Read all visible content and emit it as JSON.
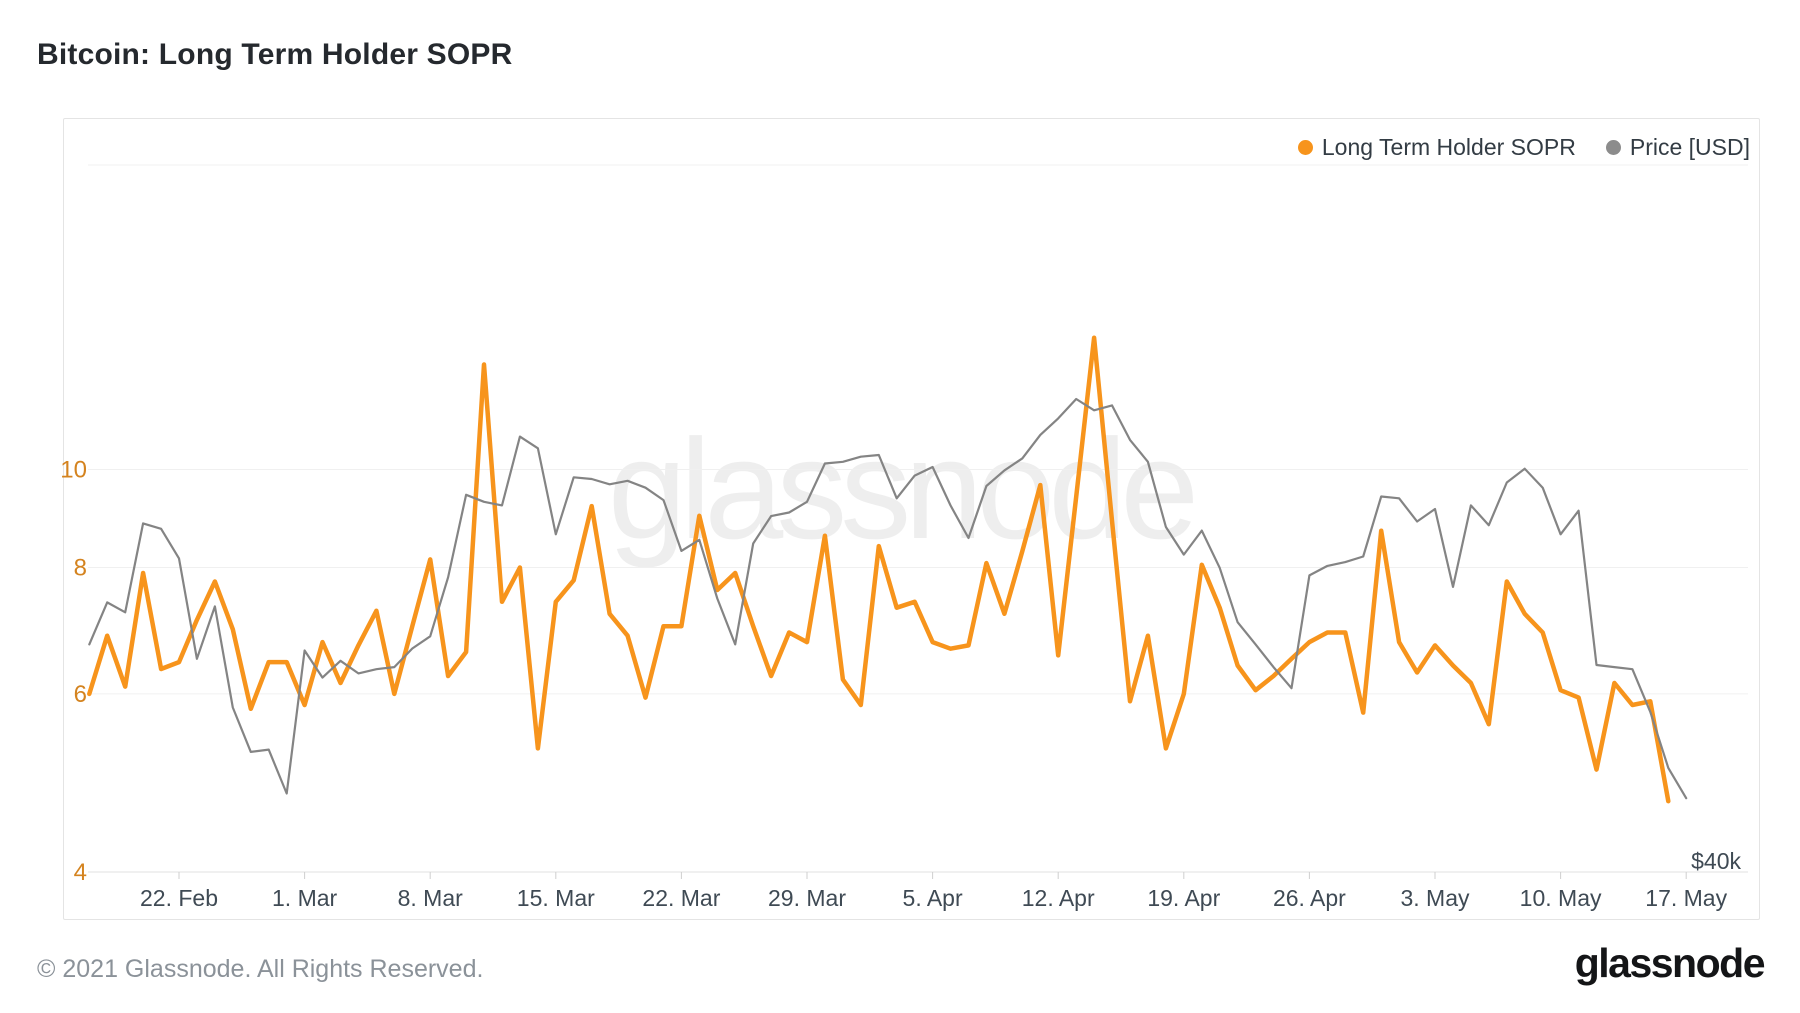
{
  "page": {
    "title": "Bitcoin: Long Term Holder SOPR"
  },
  "legend": {
    "items": [
      {
        "label": "Long Term Holder SOPR",
        "color": "#f7941c"
      },
      {
        "label": "Price [USD]",
        "color": "#8c8c8c"
      }
    ]
  },
  "watermark": {
    "text": "glassnode"
  },
  "footer": {
    "copyright": "© 2021 Glassnode. All Rights Reserved.",
    "brand": "glassnode"
  },
  "colors": {
    "sopr_line": "#f7941c",
    "price_line": "#848484",
    "y_left_label_color": "#d4831f",
    "x_label_color": "#3f4a54",
    "grid_color": "#f0f0f0",
    "axis_line_color": "#e0e0e0",
    "tick_color": "#cfcfcf"
  },
  "chart_data": {
    "type": "line",
    "title": "Bitcoin: Long Term Holder SOPR",
    "x_unit": "day",
    "start_date": "2021-02-17",
    "x_tick_labels": [
      "22. Feb",
      "1. Mar",
      "8. Mar",
      "15. Mar",
      "22. Mar",
      "29. Mar",
      "5. Apr",
      "12. Apr",
      "19. Apr",
      "26. Apr",
      "3. May",
      "10. May",
      "17. May"
    ],
    "x_tick_day_indices": [
      5,
      12,
      19,
      26,
      33,
      40,
      47,
      54,
      61,
      68,
      75,
      82,
      89
    ],
    "grid": "horizontal-only",
    "legend_position": "top-right",
    "y_left_axis": {
      "scale": "log",
      "min": 4,
      "max": 20,
      "tick_values": [
        10,
        8,
        6,
        4
      ],
      "label_color": "#d4831f"
    },
    "y_right_axis": {
      "scale": "log",
      "min": 40000,
      "max": 80000,
      "tick_labels": [
        "$40k"
      ]
    },
    "series": [
      {
        "name": "Long Term Holder SOPR",
        "axis": "left",
        "color": "#f7941c",
        "end_date": "2021-05-16",
        "values": [
          6.0,
          6.85,
          6.1,
          7.9,
          6.35,
          6.45,
          7.1,
          7.75,
          6.95,
          5.8,
          6.45,
          6.45,
          5.85,
          6.75,
          6.15,
          6.7,
          7.25,
          6.0,
          7.0,
          8.15,
          6.25,
          6.6,
          12.7,
          7.4,
          8.0,
          5.3,
          7.4,
          7.77,
          9.2,
          7.2,
          6.85,
          5.95,
          7.0,
          7.0,
          9.0,
          7.6,
          7.9,
          7.0,
          6.25,
          6.9,
          6.75,
          8.6,
          6.2,
          5.85,
          8.4,
          7.3,
          7.4,
          6.75,
          6.65,
          6.7,
          8.08,
          7.2,
          8.3,
          9.65,
          6.55,
          9.4,
          13.5,
          8.9,
          5.9,
          6.85,
          5.3,
          6.0,
          8.05,
          7.3,
          6.4,
          6.05,
          6.25,
          6.5,
          6.75,
          6.9,
          6.9,
          5.75,
          8.7,
          6.75,
          6.3,
          6.7,
          6.4,
          6.15,
          5.6,
          7.75,
          7.2,
          6.9,
          6.05,
          5.95,
          5.05,
          6.15,
          5.85,
          5.9,
          4.7
        ]
      },
      {
        "name": "Price [USD]",
        "axis": "right",
        "color": "#848484",
        "end_date": "2021-05-17",
        "values": [
          50000,
          52100,
          51600,
          56300,
          56000,
          54400,
          49300,
          51900,
          47000,
          45000,
          45100,
          43200,
          49700,
          48400,
          49200,
          48600,
          48800,
          48900,
          49800,
          50400,
          53400,
          57900,
          57500,
          57300,
          61300,
          60600,
          55700,
          58900,
          58800,
          58500,
          58700,
          58300,
          57600,
          54800,
          55400,
          52300,
          50000,
          55200,
          56700,
          56900,
          57500,
          59700,
          59800,
          60100,
          60200,
          57700,
          59000,
          59500,
          57300,
          55500,
          58400,
          59300,
          60000,
          61400,
          62400,
          63600,
          62900,
          63200,
          61100,
          59800,
          56100,
          54600,
          55900,
          53900,
          51100,
          50000,
          48900,
          47900,
          53500,
          54000,
          54200,
          54500,
          57800,
          57700,
          56400,
          57100,
          52900,
          57300,
          56200,
          58600,
          59400,
          58300,
          55700,
          57000,
          49000,
          48900,
          48800,
          46800,
          44300,
          43000
        ]
      }
    ]
  }
}
